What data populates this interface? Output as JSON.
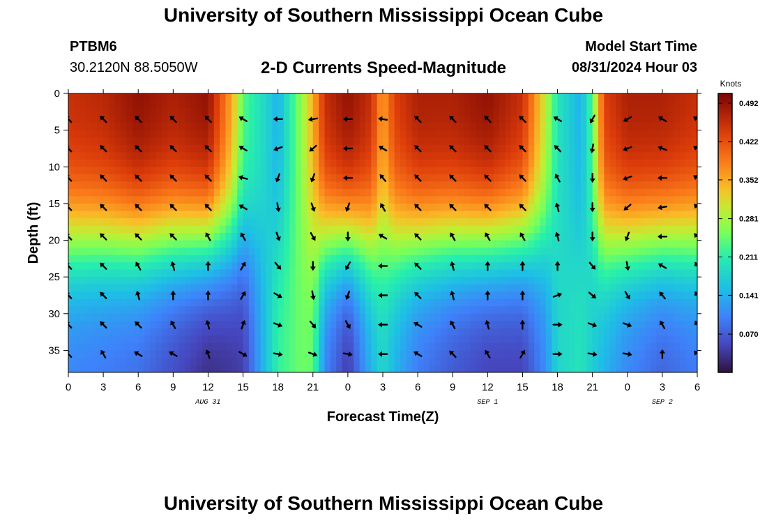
{
  "title": "University of Southern Mississippi Ocean Cube",
  "footer_title": "University of Southern Mississippi Ocean Cube",
  "station": {
    "name": "PTBM6",
    "coords": "30.2120N  88.5050W"
  },
  "subtitle": "2-D Currents Speed-Magnitude",
  "model_start": {
    "label": "Model Start Time",
    "value": "08/31/2024 Hour 03"
  },
  "chart_data": {
    "type": "heatmap",
    "title": "2-D Currents Speed-Magnitude",
    "xlabel": "Forecast Time(Z)",
    "ylabel": "Depth (ft)",
    "x_tick_labels": [
      "0",
      "3",
      "6",
      "9",
      "12",
      "15",
      "18",
      "21",
      "0",
      "3",
      "6",
      "9",
      "12",
      "15",
      "18",
      "21",
      "0",
      "3",
      "6"
    ],
    "x_range_hours": [
      0,
      54
    ],
    "date_labels": [
      {
        "text": "AUG 31",
        "hour": 12
      },
      {
        "text": "SEP 1",
        "hour": 36
      },
      {
        "text": "SEP 2",
        "hour": 51
      }
    ],
    "y_ticks": [
      0,
      5,
      10,
      15,
      20,
      25,
      30,
      35
    ],
    "y_range_ft": [
      0,
      38
    ],
    "colorbar": {
      "unit": "Knots",
      "ticks": [
        "0.492",
        "0.422",
        "0.352",
        "0.281",
        "0.211",
        "0.141",
        "0.070"
      ],
      "range": [
        0,
        0.51
      ]
    },
    "speed_profiles": [
      {
        "hour": 0,
        "surface": 0.46,
        "bottom": 0.1
      },
      {
        "hour": 3,
        "surface": 0.47,
        "bottom": 0.09
      },
      {
        "hour": 6,
        "surface": 0.5,
        "bottom": 0.08
      },
      {
        "hour": 9,
        "surface": 0.48,
        "bottom": 0.05
      },
      {
        "hour": 12,
        "surface": 0.5,
        "bottom": 0.02
      },
      {
        "hour": 14,
        "surface": 0.36,
        "bottom": 0.03
      },
      {
        "hour": 15,
        "surface": 0.24,
        "bottom": 0.04
      },
      {
        "hour": 17,
        "surface": 0.18,
        "bottom": 0.16
      },
      {
        "hour": 18,
        "surface": 0.14,
        "bottom": 0.22
      },
      {
        "hour": 20,
        "surface": 0.27,
        "bottom": 0.25
      },
      {
        "hour": 21,
        "surface": 0.35,
        "bottom": 0.24
      },
      {
        "hour": 22,
        "surface": 0.46,
        "bottom": 0.1
      },
      {
        "hour": 24,
        "surface": 0.5,
        "bottom": 0.03
      },
      {
        "hour": 26,
        "surface": 0.46,
        "bottom": 0.14
      },
      {
        "hour": 27,
        "surface": 0.36,
        "bottom": 0.18
      },
      {
        "hour": 28,
        "surface": 0.44,
        "bottom": 0.14
      },
      {
        "hour": 30,
        "surface": 0.48,
        "bottom": 0.09
      },
      {
        "hour": 33,
        "surface": 0.48,
        "bottom": 0.06
      },
      {
        "hour": 36,
        "surface": 0.5,
        "bottom": 0.04
      },
      {
        "hour": 39,
        "surface": 0.46,
        "bottom": 0.04
      },
      {
        "hour": 41,
        "surface": 0.3,
        "bottom": 0.11
      },
      {
        "hour": 42,
        "surface": 0.2,
        "bottom": 0.18
      },
      {
        "hour": 44,
        "surface": 0.14,
        "bottom": 0.2
      },
      {
        "hour": 45,
        "surface": 0.24,
        "bottom": 0.17
      },
      {
        "hour": 46,
        "surface": 0.44,
        "bottom": 0.14
      },
      {
        "hour": 48,
        "surface": 0.48,
        "bottom": 0.1
      },
      {
        "hour": 51,
        "surface": 0.48,
        "bottom": 0.07
      },
      {
        "hour": 54,
        "surface": 0.46,
        "bottom": 0.09
      }
    ],
    "arrow_hours": [
      0,
      3,
      6,
      9,
      12,
      15,
      18,
      21,
      24,
      27,
      30,
      33,
      36,
      39,
      42,
      45,
      48,
      51,
      54
    ],
    "arrow_depths_ft": [
      3.5,
      7.5,
      11.5,
      15.5,
      19.5,
      23.5,
      27.5,
      31.5,
      35.5
    ],
    "arrow_direction_deg_by_hour": [
      [
        315,
        315,
        315,
        315,
        315,
        315,
        315,
        315,
        315
      ],
      [
        315,
        315,
        315,
        315,
        315,
        315,
        315,
        315,
        330
      ],
      [
        315,
        315,
        315,
        315,
        315,
        330,
        345,
        315,
        300
      ],
      [
        315,
        315,
        315,
        315,
        315,
        345,
        0,
        330,
        300
      ],
      [
        315,
        315,
        315,
        315,
        330,
        0,
        0,
        345,
        340
      ],
      [
        300,
        300,
        285,
        300,
        330,
        30,
        30,
        20,
        120
      ],
      [
        270,
        250,
        200,
        170,
        160,
        140,
        120,
        110,
        100
      ],
      [
        260,
        230,
        200,
        160,
        150,
        180,
        170,
        140,
        110
      ],
      [
        270,
        270,
        270,
        200,
        180,
        210,
        200,
        150,
        100
      ],
      [
        280,
        300,
        320,
        330,
        300,
        270,
        270,
        270,
        270
      ],
      [
        315,
        315,
        315,
        315,
        315,
        315,
        315,
        300,
        300
      ],
      [
        315,
        315,
        315,
        315,
        330,
        345,
        345,
        330,
        315
      ],
      [
        315,
        315,
        315,
        315,
        330,
        0,
        0,
        345,
        330
      ],
      [
        315,
        315,
        315,
        315,
        330,
        0,
        0,
        0,
        30
      ],
      [
        300,
        315,
        330,
        345,
        345,
        0,
        70,
        90,
        90
      ],
      [
        210,
        190,
        180,
        180,
        180,
        140,
        130,
        110,
        100
      ],
      [
        240,
        250,
        250,
        230,
        200,
        170,
        150,
        110,
        100
      ],
      [
        300,
        290,
        270,
        260,
        270,
        300,
        320,
        330,
        0
      ],
      [
        300,
        300,
        300,
        315,
        315,
        330,
        330,
        330,
        315
      ]
    ]
  }
}
